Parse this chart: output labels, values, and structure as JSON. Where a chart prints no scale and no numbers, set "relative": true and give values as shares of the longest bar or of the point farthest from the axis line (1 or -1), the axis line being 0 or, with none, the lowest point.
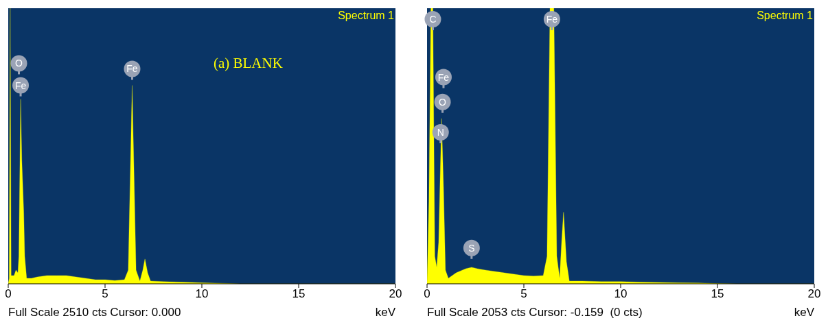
{
  "chart_data": [
    {
      "type": "area",
      "title": "Spectrum 1",
      "xlabel": "keV",
      "relative": true,
      "xlim": [
        0,
        20
      ],
      "xticks": [
        0,
        5,
        10,
        15,
        20
      ],
      "annotations": [
        "(a) BLANK",
        "Full Scale 2510 cts Cursor: 0.000",
        {
          "text": "O",
          "x": 0.55,
          "y": 0.8
        },
        {
          "text": "Fe",
          "x": 0.64,
          "y": 0.72
        },
        {
          "text": "Fe",
          "x": 6.4,
          "y": 0.78
        }
      ],
      "series": [
        {
          "color": "#ffff00",
          "x": [
            0,
            0.05,
            0.1,
            0.15,
            0.3,
            0.4,
            0.5,
            0.55,
            0.64,
            0.7,
            0.8,
            0.85,
            0.95,
            1.2,
            1.5,
            2,
            2.5,
            3,
            3.5,
            4,
            4.5,
            5,
            5.5,
            6,
            6.2,
            6.4,
            6.6,
            6.8,
            6.95,
            7.06,
            7.2,
            7.35,
            8,
            9,
            10,
            11,
            12,
            20
          ],
          "values": [
            0,
            0.02,
            1,
            0.03,
            0.03,
            0.05,
            0.04,
            0.1,
            0.67,
            0.45,
            0.26,
            0.1,
            0.02,
            0.02,
            0.025,
            0.03,
            0.03,
            0.03,
            0.025,
            0.02,
            0.015,
            0.015,
            0.012,
            0.015,
            0.05,
            0.72,
            0.05,
            0.01,
            0.05,
            0.09,
            0.04,
            0.01,
            0.008,
            0.006,
            0.004,
            0.002,
            0,
            0
          ]
        }
      ]
    },
    {
      "type": "area",
      "title": "Spectrum 1",
      "xlabel": "keV",
      "relative": true,
      "xlim": [
        0,
        20
      ],
      "xticks": [
        0,
        5,
        10,
        15,
        20
      ],
      "annotations": [
        "Full Scale 2053 cts Cursor: -0.159  (0 cts)",
        {
          "text": "C",
          "x": 0.3,
          "y": 0.96
        },
        {
          "text": "Fe",
          "x": 0.85,
          "y": 0.75
        },
        {
          "text": "O",
          "x": 0.8,
          "y": 0.66
        },
        {
          "text": "N",
          "x": 0.7,
          "y": 0.55
        },
        {
          "text": "S",
          "x": 2.3,
          "y": 0.13
        },
        {
          "text": "Fe",
          "x": 6.45,
          "y": 0.96
        }
      ],
      "series": [
        {
          "color": "#ffff00",
          "x": [
            0,
            0.1,
            0.2,
            0.3,
            0.4,
            0.5,
            0.6,
            0.75,
            0.85,
            0.95,
            1.1,
            1.5,
            2,
            2.3,
            2.6,
            3,
            3.5,
            4,
            4.5,
            5,
            5.5,
            6,
            6.2,
            6.35,
            6.55,
            6.7,
            6.85,
            6.95,
            7.05,
            7.2,
            7.35,
            8,
            9,
            10,
            11,
            12,
            13,
            14,
            15,
            16,
            20
          ],
          "values": [
            0,
            0.3,
            1,
            1,
            0.1,
            0.06,
            0.15,
            0.6,
            0.35,
            0.05,
            0.02,
            0.04,
            0.055,
            0.06,
            0.055,
            0.05,
            0.045,
            0.04,
            0.035,
            0.03,
            0.028,
            0.03,
            0.1,
            1,
            1,
            0.1,
            0.02,
            0.15,
            0.26,
            0.08,
            0.01,
            0.01,
            0.008,
            0.008,
            0.006,
            0.005,
            0.004,
            0.003,
            0.001,
            0,
            0
          ]
        }
      ]
    }
  ]
}
